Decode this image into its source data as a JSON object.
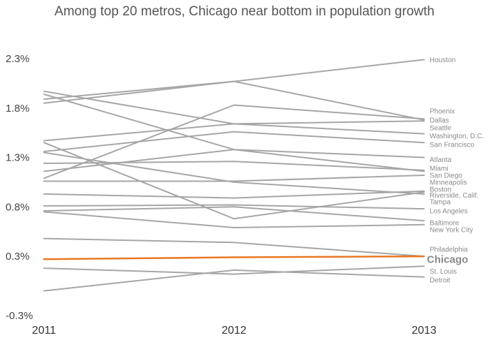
{
  "chart_data": {
    "type": "line",
    "title": "Among top 20 metros, Chicago near bottom in population growth",
    "xlabel": "",
    "ylabel": "",
    "x": [
      "2011",
      "2012",
      "2013"
    ],
    "ylim": [
      -0.3,
      2.3
    ],
    "yticks": [
      "-0.3%",
      "0.3%",
      "0.8%",
      "1.3%",
      "1.8%",
      "2.3%"
    ],
    "ytick_values": [
      -0.3,
      0.3,
      0.8,
      1.3,
      1.8,
      2.3
    ],
    "line_color": "#a6a6a6",
    "highlight_color": "#e87722",
    "label_color": "#8a8a8a",
    "series": [
      {
        "name": "Houston",
        "values": [
          1.89,
          2.07,
          2.29
        ]
      },
      {
        "name": "Phoenix",
        "values": [
          1.09,
          1.83,
          1.69
        ]
      },
      {
        "name": "Dallas",
        "values": [
          1.85,
          2.07,
          1.68
        ]
      },
      {
        "name": "Seattle",
        "values": [
          1.47,
          1.64,
          1.67
        ]
      },
      {
        "name": "Washington, D.C.",
        "values": [
          1.97,
          1.64,
          1.54
        ]
      },
      {
        "name": "San Francisco",
        "values": [
          1.36,
          1.56,
          1.45
        ]
      },
      {
        "name": "Atlanta",
        "values": [
          1.94,
          1.38,
          1.3
        ]
      },
      {
        "name": "Miami",
        "values": [
          1.24,
          1.26,
          1.17
        ]
      },
      {
        "name": "San Diego",
        "values": [
          1.16,
          1.38,
          1.16
        ]
      },
      {
        "name": "Minneapolis",
        "values": [
          1.06,
          1.06,
          1.12
        ]
      },
      {
        "name": "Boston",
        "values": [
          0.93,
          0.89,
          0.96
        ]
      },
      {
        "name": "Riverside, Calif.",
        "values": [
          1.45,
          0.68,
          0.95
        ]
      },
      {
        "name": "Tampa",
        "values": [
          1.35,
          1.05,
          0.93
        ]
      },
      {
        "name": "Los Angeles",
        "values": [
          0.81,
          0.82,
          0.78
        ]
      },
      {
        "name": "Baltimore",
        "values": [
          0.76,
          0.8,
          0.66
        ]
      },
      {
        "name": "New York City",
        "values": [
          0.75,
          0.59,
          0.62
        ]
      },
      {
        "name": "Philadelphia",
        "values": [
          0.48,
          0.44,
          0.3
        ]
      },
      {
        "name": "St. Louis",
        "values": [
          0.18,
          0.12,
          0.2
        ]
      },
      {
        "name": "Detroit",
        "values": [
          -0.05,
          0.16,
          0.09
        ]
      },
      {
        "name": "Chicago",
        "values": [
          0.27,
          0.29,
          0.3
        ],
        "highlight": true
      }
    ],
    "labels": [
      {
        "name": "Houston",
        "value": 2.29
      },
      {
        "name": "Phoenix",
        "value": 1.77
      },
      {
        "name": "Dallas",
        "value": 1.68
      },
      {
        "name": "Seattle",
        "value": 1.6
      },
      {
        "name": "Washington, D.C.",
        "value": 1.52
      },
      {
        "name": "San Francisco",
        "value": 1.43
      },
      {
        "name": "Atlanta",
        "value": 1.28
      },
      {
        "name": "Miami",
        "value": 1.19
      },
      {
        "name": "San Diego",
        "value": 1.12
      },
      {
        "name": "Minneapolis",
        "value": 1.05
      },
      {
        "name": "Boston",
        "value": 0.98
      },
      {
        "name": "Riverside, Calif.",
        "value": 0.92
      },
      {
        "name": "Tampa",
        "value": 0.85
      },
      {
        "name": "Los Angeles",
        "value": 0.76
      },
      {
        "name": "Baltimore",
        "value": 0.64
      },
      {
        "name": "New York City",
        "value": 0.57
      },
      {
        "name": "Philadelphia",
        "value": 0.37
      },
      {
        "name": "Chicago",
        "value": 0.27,
        "highlight": true
      },
      {
        "name": "St. Louis",
        "value": 0.15
      },
      {
        "name": "Detroit",
        "value": 0.06
      }
    ]
  }
}
